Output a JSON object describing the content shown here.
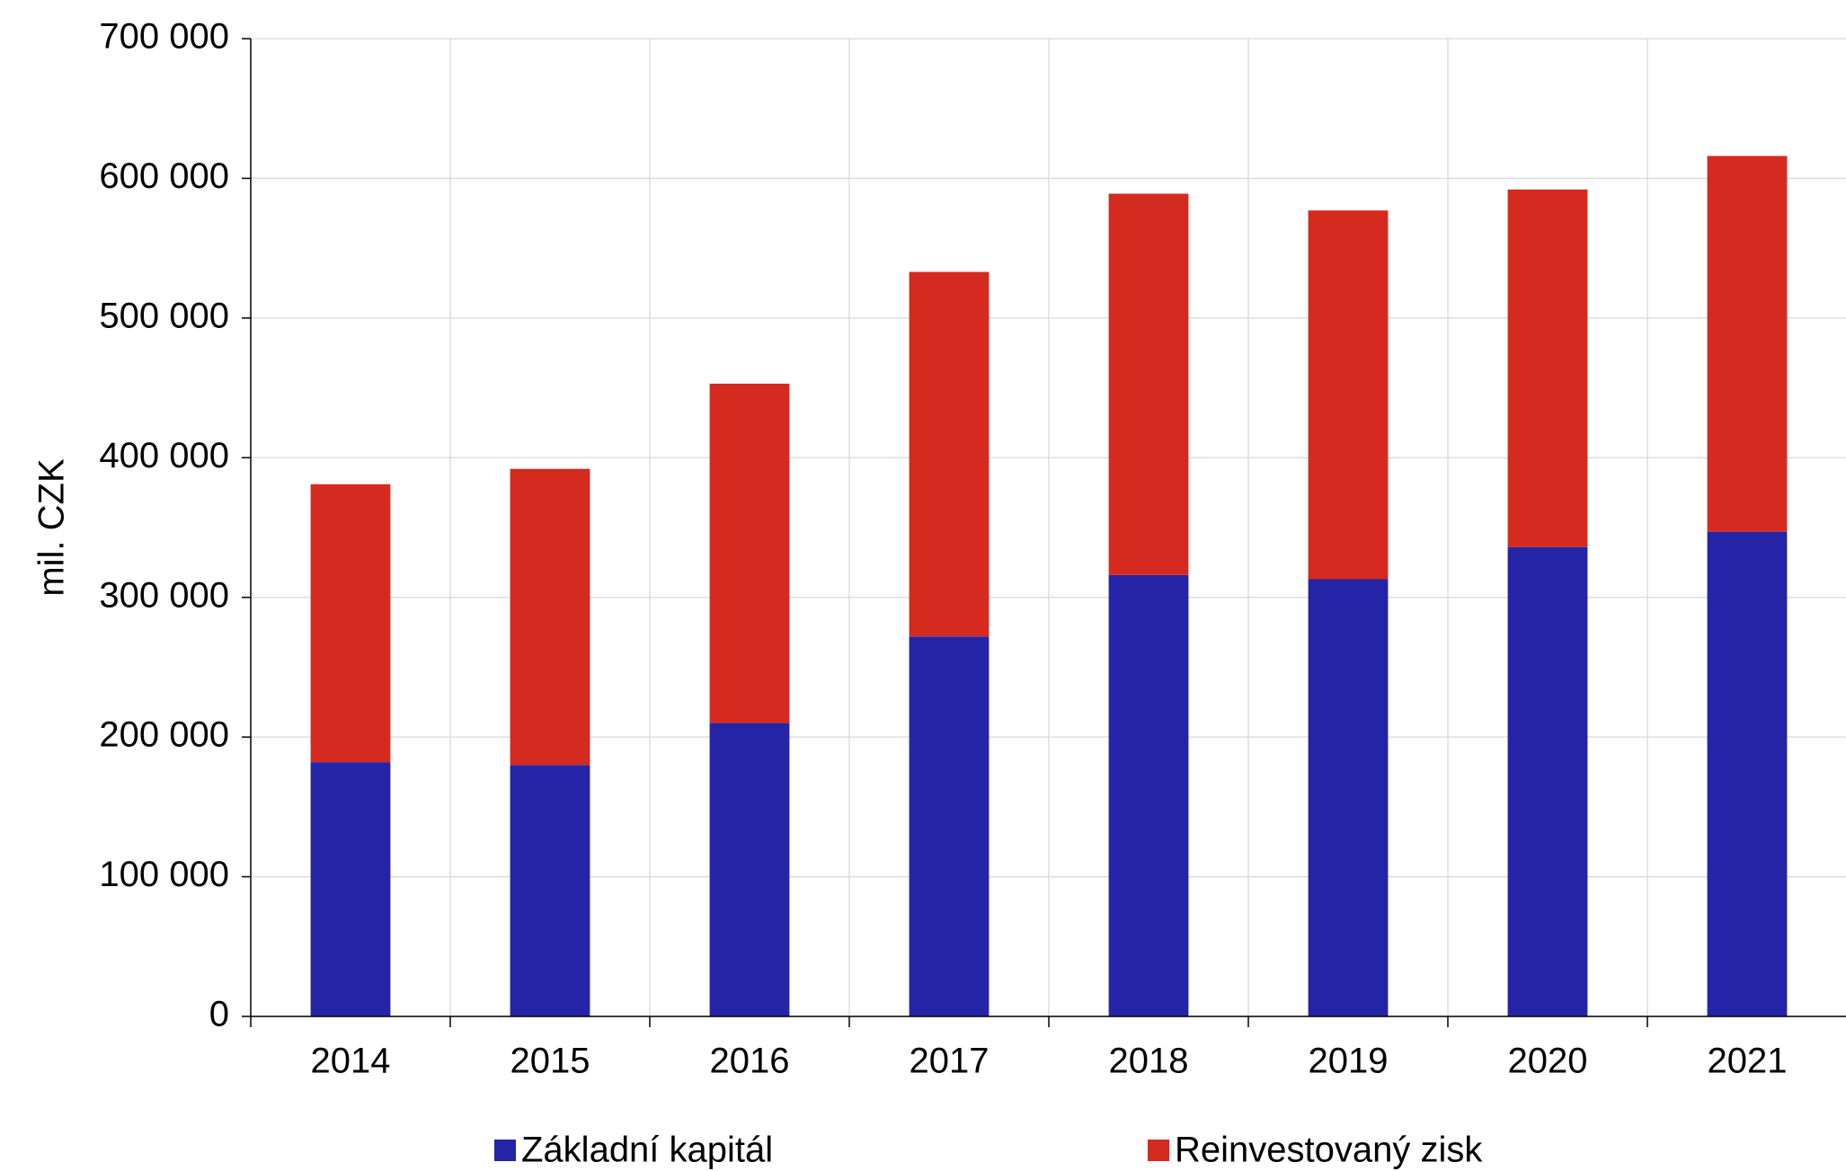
{
  "chart_data": {
    "type": "stacked-bar",
    "y_label": "mil. CZK",
    "categories": [
      "2014",
      "2015",
      "2016",
      "2017",
      "2018",
      "2019",
      "2020",
      "2021"
    ],
    "series": [
      {
        "name": "Základní kapitál",
        "color": "#2424a6",
        "values": [
          182000,
          180000,
          210000,
          272000,
          316000,
          313000,
          336000,
          347000
        ]
      },
      {
        "name": "Reinvestovaný zisk",
        "color": "#d42a1f",
        "values": [
          199000,
          212000,
          243000,
          261000,
          273000,
          264000,
          256000,
          269000
        ]
      }
    ],
    "ylim": [
      0,
      700000
    ],
    "yticks": [
      0,
      {
        "value": 100000,
        "label": "100 000"
      },
      {
        "value": 200000,
        "label": "200 000"
      },
      {
        "value": 300000,
        "label": "300 000"
      },
      {
        "value": 400000,
        "label": "400 000"
      },
      {
        "value": 500000,
        "label": "500 000"
      },
      {
        "value": 600000,
        "label": "600 000"
      },
      {
        "value": 700000,
        "label": "700 000"
      }
    ],
    "grid": true,
    "legend": "bottom"
  }
}
